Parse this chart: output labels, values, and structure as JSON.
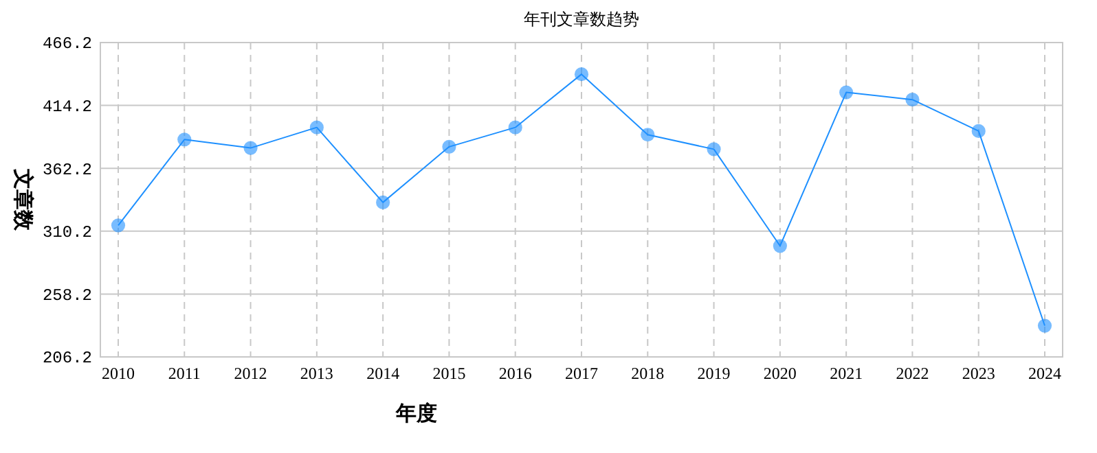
{
  "chart_data": {
    "type": "line",
    "title": "年刊文章数趋势",
    "xlabel": "年度",
    "ylabel": "文章数",
    "categories": [
      "2010",
      "2011",
      "2012",
      "2013",
      "2014",
      "2015",
      "2016",
      "2017",
      "2018",
      "2019",
      "2020",
      "2021",
      "2022",
      "2023",
      "2024"
    ],
    "series": [
      {
        "color": "#1e90ff",
        "values": [
          315,
          386,
          379,
          396,
          334,
          380,
          396,
          440,
          390,
          378,
          298,
          425,
          419,
          393,
          232
        ]
      }
    ],
    "ylim": [
      206.2,
      466.2
    ],
    "yticks": [
      206.2,
      258.2,
      310.2,
      362.2,
      414.2,
      466.2
    ],
    "grid": true,
    "marker": "circle",
    "line_style": "solid"
  }
}
